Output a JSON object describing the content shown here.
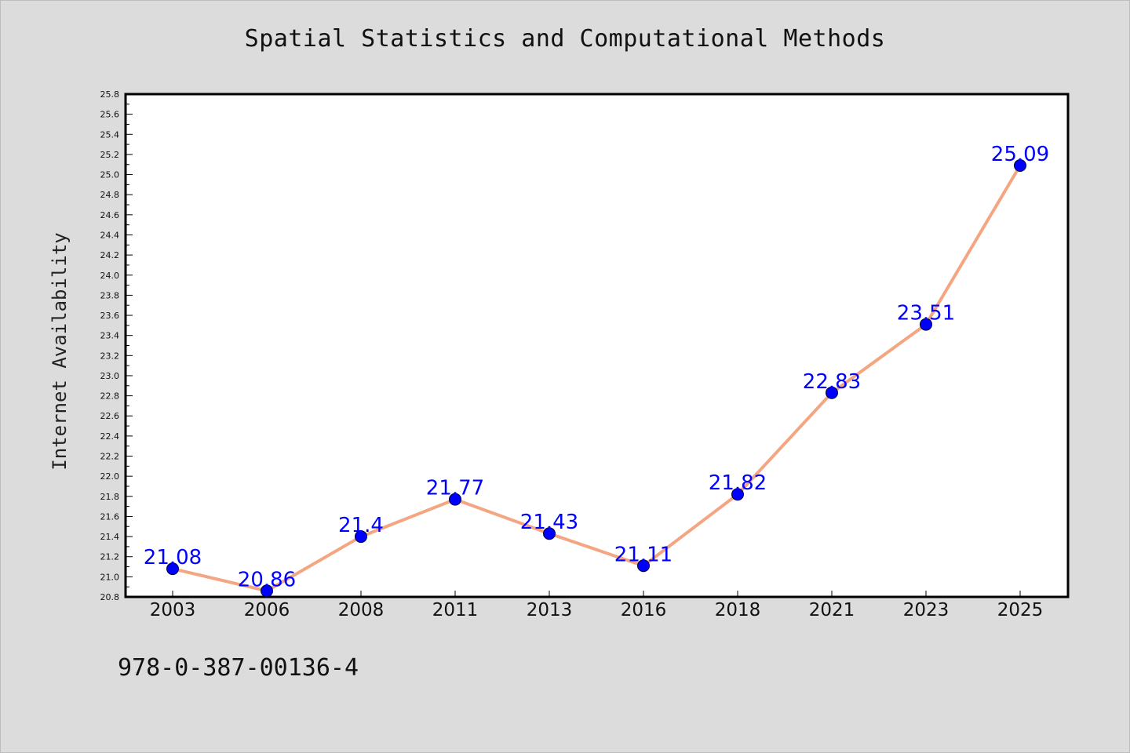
{
  "page": {
    "title": "Spatial Statistics and Computational Methods",
    "footer_id": "978-0-387-00136-4"
  },
  "colors": {
    "background": "#dcdcdc",
    "plot_background": "#ffffff",
    "line": "#f4a582",
    "marker": "#0000ff",
    "data_label": "#0000ff"
  },
  "chart_data": {
    "type": "line",
    "title": "Spatial Statistics and Computational Methods",
    "xlabel": "",
    "ylabel": "Internet Availability",
    "categories": [
      "2003",
      "2006",
      "2008",
      "2011",
      "2013",
      "2016",
      "2018",
      "2021",
      "2023",
      "2025"
    ],
    "series": [
      {
        "values": [
          21.08,
          20.86,
          21.4,
          21.77,
          21.43,
          21.11,
          21.82,
          22.83,
          23.51,
          25.09
        ],
        "data_labels": [
          "21.08",
          "20.86",
          "21.4",
          "21.77",
          "21.43",
          "21.11",
          "21.82",
          "22.83",
          "23.51",
          "25.09"
        ]
      }
    ],
    "ylim": [
      20.8,
      25.8
    ],
    "yticks": [
      "20.8",
      "21.0",
      "21.2",
      "21.4",
      "21.6",
      "21.8",
      "22.0",
      "22.2",
      "22.4",
      "22.6",
      "22.8",
      "23.0",
      "23.2",
      "23.4",
      "23.6",
      "23.8",
      "24.0",
      "24.2",
      "24.4",
      "24.6",
      "24.8",
      "25.0",
      "25.2",
      "25.4",
      "25.6",
      "25.8"
    ],
    "grid": false,
    "legend": "none",
    "marker": "circle"
  }
}
